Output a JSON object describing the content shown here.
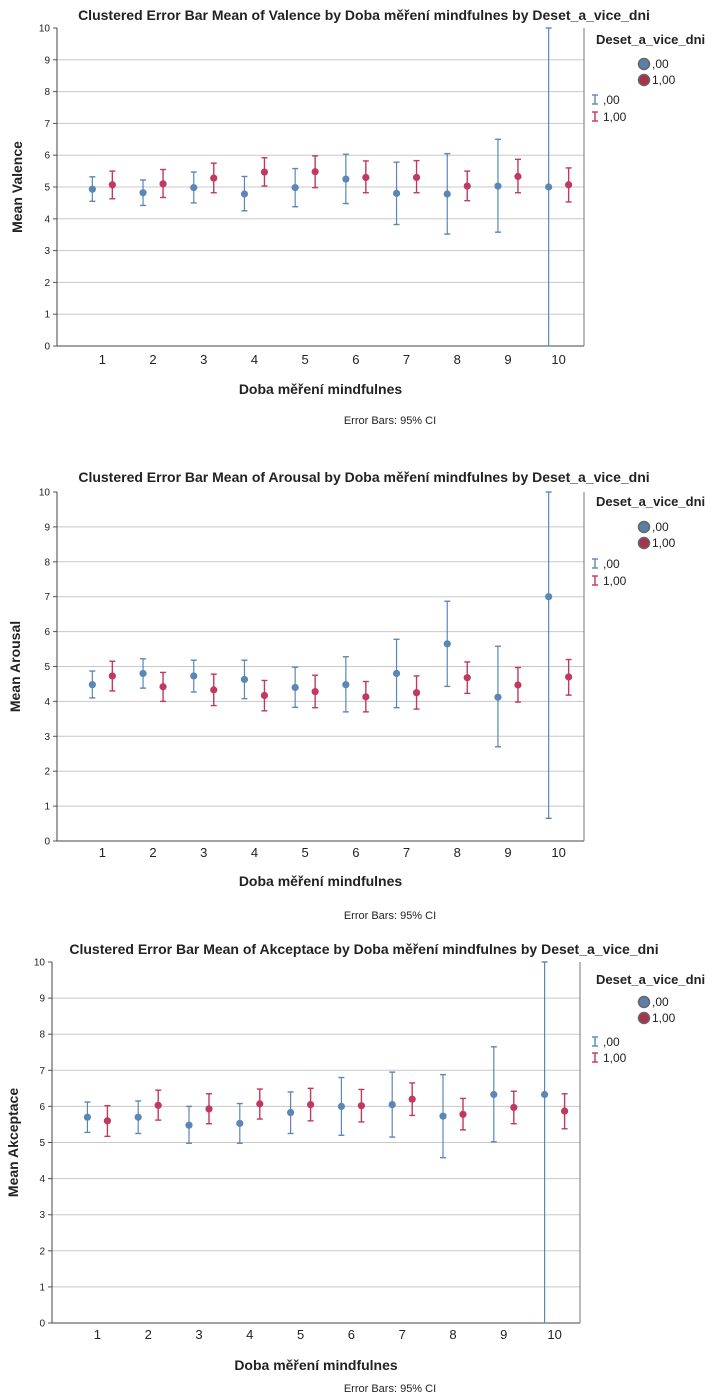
{
  "chart_data": [
    {
      "type": "errorbar",
      "title": "Clustered Error Bar Mean of Valence by Doba měření mindfulnes by Deset_a_vice_dni",
      "xlabel": "Doba měření mindfulnes",
      "ylabel": "Mean Valence",
      "note": "Error Bars: 95% CI",
      "legend_title": "Deset_a_vice_dni",
      "legend_placement": "top-right",
      "ylim": [
        0,
        10
      ],
      "yticks": [
        "0",
        "1",
        "2",
        "3",
        "4",
        "5",
        "6",
        "7",
        "8",
        "9",
        "10"
      ],
      "categories": [
        "1",
        "2",
        "3",
        "4",
        "5",
        "6",
        "7",
        "8",
        "9",
        "10"
      ],
      "series": [
        {
          "name": ",00",
          "color": "#5b87b7",
          "mean": [
            4.93,
            4.82,
            4.98,
            4.78,
            4.98,
            5.25,
            4.8,
            4.78,
            5.03,
            5.0
          ],
          "low": [
            4.55,
            4.42,
            4.5,
            4.25,
            4.38,
            4.48,
            3.82,
            3.52,
            3.58,
            0.0
          ],
          "high": [
            5.32,
            5.22,
            5.47,
            5.33,
            5.58,
            6.03,
            5.78,
            6.05,
            6.5,
            10.0
          ]
        },
        {
          "name": "1,00",
          "color": "#c0395e",
          "mean": [
            5.07,
            5.1,
            5.28,
            5.47,
            5.48,
            5.3,
            5.3,
            5.03,
            5.33,
            5.07
          ],
          "low": [
            4.63,
            4.67,
            4.82,
            5.03,
            4.98,
            4.82,
            4.82,
            4.57,
            4.82,
            4.53
          ],
          "high": [
            5.5,
            5.55,
            5.75,
            5.92,
            5.98,
            5.82,
            5.83,
            5.5,
            5.87,
            5.6
          ]
        }
      ]
    },
    {
      "type": "errorbar",
      "title": "Clustered Error Bar Mean of Arousal by Doba měření mindfulnes by Deset_a_vice_dni",
      "xlabel": "Doba měření mindfulnes",
      "ylabel": "Mean Arousal",
      "note": "Error Bars: 95% CI",
      "legend_title": "Deset_a_vice_dni",
      "legend_placement": "top-right",
      "ylim": [
        0,
        10
      ],
      "yticks": [
        "0",
        "1",
        "2",
        "3",
        "4",
        "5",
        "6",
        "7",
        "8",
        "9",
        "10"
      ],
      "categories": [
        "1",
        "2",
        "3",
        "4",
        "5",
        "6",
        "7",
        "8",
        "9",
        "10"
      ],
      "series": [
        {
          "name": ",00",
          "color": "#5b87b7",
          "mean": [
            4.48,
            4.8,
            4.73,
            4.63,
            4.4,
            4.48,
            4.8,
            5.65,
            4.12,
            7.0
          ],
          "low": [
            4.1,
            4.38,
            4.27,
            4.08,
            3.83,
            3.7,
            3.82,
            4.43,
            2.7,
            0.65
          ],
          "high": [
            4.87,
            5.22,
            5.18,
            5.18,
            4.98,
            5.28,
            5.78,
            6.87,
            5.58,
            10.0
          ]
        },
        {
          "name": "1,00",
          "color": "#c0395e",
          "mean": [
            4.73,
            4.42,
            4.33,
            4.17,
            4.28,
            4.13,
            4.25,
            4.68,
            4.47,
            4.7
          ],
          "low": [
            4.3,
            4.0,
            3.88,
            3.73,
            3.82,
            3.7,
            3.78,
            4.23,
            3.98,
            4.18
          ],
          "high": [
            5.15,
            4.83,
            4.78,
            4.6,
            4.75,
            4.57,
            4.73,
            5.13,
            4.97,
            5.2
          ]
        }
      ]
    },
    {
      "type": "errorbar",
      "title": "Clustered Error Bar Mean of Akceptace by Doba měření mindfulnes by Deset_a_vice_dni",
      "xlabel": "Doba měření mindfulnes",
      "ylabel": "Mean Akceptace",
      "note": "Error Bars: 95% CI",
      "legend_title": "Deset_a_vice_dni",
      "legend_placement": "top-right",
      "ylim": [
        0,
        10
      ],
      "yticks": [
        "0",
        "1",
        "2",
        "3",
        "4",
        "5",
        "6",
        "7",
        "8",
        "9",
        "10"
      ],
      "categories": [
        "1",
        "2",
        "3",
        "4",
        "5",
        "6",
        "7",
        "8",
        "9",
        "10"
      ],
      "series": [
        {
          "name": ",00",
          "color": "#5b87b7",
          "mean": [
            5.7,
            5.7,
            5.48,
            5.53,
            5.83,
            6.0,
            6.05,
            5.73,
            6.33,
            6.33
          ],
          "low": [
            5.28,
            5.25,
            4.98,
            4.98,
            5.25,
            5.2,
            5.15,
            4.58,
            5.02,
            0.0
          ],
          "high": [
            6.12,
            6.15,
            6.0,
            6.08,
            6.4,
            6.8,
            6.95,
            6.88,
            7.65,
            10.0
          ]
        },
        {
          "name": "1,00",
          "color": "#c0395e",
          "mean": [
            5.6,
            6.03,
            5.93,
            6.07,
            6.05,
            6.02,
            6.2,
            5.78,
            5.97,
            5.87
          ],
          "low": [
            5.17,
            5.62,
            5.52,
            5.65,
            5.6,
            5.57,
            5.75,
            5.35,
            5.52,
            5.38
          ],
          "high": [
            6.02,
            6.45,
            6.35,
            6.48,
            6.5,
            6.47,
            6.65,
            6.22,
            6.42,
            6.35
          ]
        }
      ]
    }
  ]
}
